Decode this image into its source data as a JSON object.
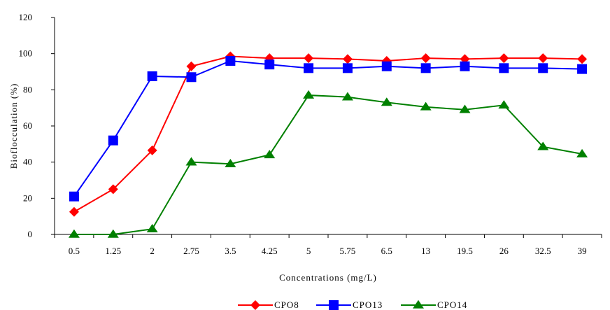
{
  "chart_data": {
    "type": "line",
    "title": "",
    "xlabel": "Concentrations (mg/L)",
    "ylabel": "Bioflocculation (%)",
    "categories": [
      "0.5",
      "1.25",
      "2",
      "2.75",
      "3.5",
      "4.25",
      "5",
      "5.75",
      "6.5",
      "13",
      "19.5",
      "26",
      "32.5",
      "39"
    ],
    "ylim": [
      0,
      120
    ],
    "yticks": [
      "0",
      "20",
      "40",
      "60",
      "80",
      "100",
      "120"
    ],
    "grid": false,
    "legend_position": "bottom",
    "series": [
      {
        "name": "CPO8",
        "color": "#ff0000",
        "marker": "diamond",
        "values": [
          12.5,
          25,
          46.5,
          93,
          98.5,
          97.5,
          97.5,
          97,
          96,
          97.5,
          97,
          97.5,
          97.5,
          97
        ]
      },
      {
        "name": "CPO13",
        "color": "#0000ff",
        "marker": "square",
        "values": [
          21,
          52,
          87.5,
          87,
          96,
          94,
          92,
          92,
          93,
          92,
          93,
          92,
          92,
          91.5
        ]
      },
      {
        "name": "CPO14",
        "color": "#008000",
        "marker": "triangle",
        "values": [
          0,
          0,
          3,
          40,
          39,
          44,
          77,
          76,
          73,
          70.5,
          69,
          71.5,
          48.5,
          44.5
        ]
      }
    ]
  }
}
